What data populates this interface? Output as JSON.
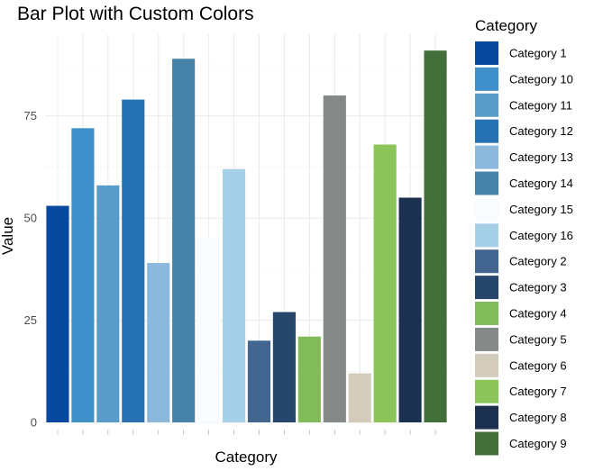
{
  "chart_data": {
    "type": "bar",
    "title": "Bar Plot with Custom Colors",
    "xlabel": "Category",
    "ylabel": "Value",
    "ylim": [
      0,
      95
    ],
    "yticks": [
      0,
      25,
      50,
      75
    ],
    "grid": true,
    "legend": {
      "title": "Category",
      "position": "right"
    },
    "categories": [
      "Category 1",
      "Category 10",
      "Category 11",
      "Category 12",
      "Category 13",
      "Category 14",
      "Category 15",
      "Category 16",
      "Category 2",
      "Category 3",
      "Category 4",
      "Category 5",
      "Category 6",
      "Category 7",
      "Category 8",
      "Category 9"
    ],
    "values": [
      53,
      72,
      58,
      79,
      39,
      89,
      45,
      62,
      20,
      27,
      21,
      80,
      12,
      68,
      55,
      91
    ],
    "colors": [
      "#08489e",
      "#4090cb",
      "#5a9cc9",
      "#2670b4",
      "#8cb8de",
      "#4682a7",
      "#f8fcff",
      "#a6cfe8",
      "#436690",
      "#27466c",
      "#82bb5a",
      "#848886",
      "#d3ccbd",
      "#8bc55a",
      "#1c3150",
      "#436f3a"
    ]
  }
}
